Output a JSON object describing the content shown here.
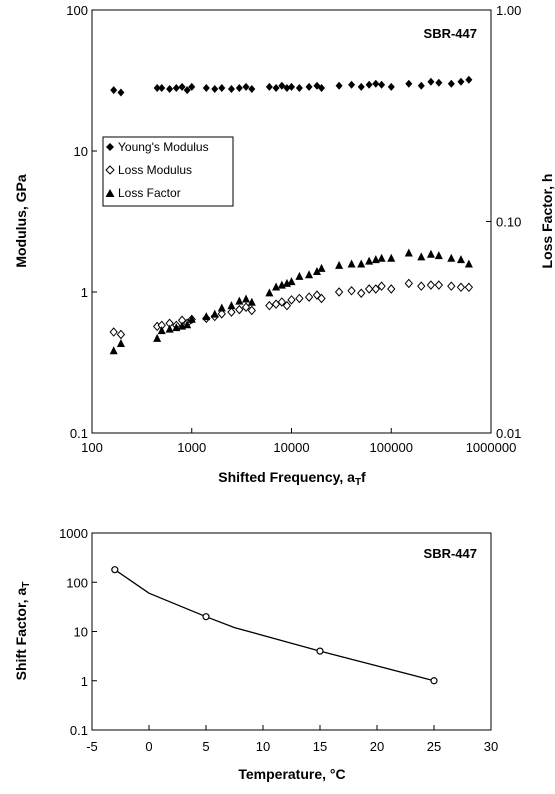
{
  "chart_data": [
    {
      "type": "scatter",
      "annotation": "SBR-447",
      "xlabel": "Shifted Frequency, a",
      "xlabel_sub": "T",
      "xlabel_tail": "f",
      "ylabel": "Modulus, GPa",
      "y2label": "Loss Factor, h",
      "x_scale": "log",
      "y_scale": "log",
      "y2_scale": "log",
      "xlim": [
        100,
        1000000
      ],
      "ylim": [
        0.1,
        100
      ],
      "y2lim": [
        0.01,
        1.0
      ],
      "x_ticks": [
        "100",
        "1000",
        "10000",
        "100000",
        "1000000"
      ],
      "y_ticks": [
        "0.1",
        "1",
        "10",
        "100"
      ],
      "y2_ticks": [
        "0.01",
        "0.10",
        "1.00"
      ],
      "grid": false,
      "legend_position": "upper-left",
      "series": [
        {
          "name": "Young's Modulus",
          "axis": "left",
          "marker": "filled-diamond",
          "x": [
            165,
            195,
            450,
            500,
            600,
            700,
            800,
            900,
            1000,
            1400,
            1700,
            2000,
            2500,
            3000,
            3500,
            4000,
            6000,
            7000,
            8000,
            9000,
            10000,
            12000,
            15000,
            18000,
            20000,
            30000,
            40000,
            50000,
            60000,
            70000,
            80000,
            100000,
            150000,
            200000,
            250000,
            300000,
            400000,
            500000,
            600000
          ],
          "y": [
            27,
            26,
            28,
            28,
            27.5,
            28,
            28.5,
            27,
            28.5,
            28,
            27.5,
            28,
            27.5,
            28,
            28.5,
            27.5,
            28.5,
            28,
            29,
            28,
            28.5,
            28,
            28.5,
            29,
            28,
            29,
            29.5,
            28.5,
            29.5,
            30,
            29.5,
            28.5,
            30,
            29,
            31,
            30.5,
            30,
            31,
            32
          ]
        },
        {
          "name": "Loss Modulus",
          "axis": "left",
          "marker": "open-diamond",
          "x": [
            165,
            195,
            450,
            500,
            600,
            700,
            800,
            900,
            1000,
            1400,
            1700,
            2000,
            2500,
            3000,
            3500,
            4000,
            6000,
            7000,
            8000,
            9000,
            10000,
            12000,
            15000,
            18000,
            20000,
            30000,
            40000,
            50000,
            60000,
            70000,
            80000,
            100000,
            150000,
            200000,
            250000,
            300000,
            400000,
            500000,
            600000
          ],
          "y": [
            0.52,
            0.5,
            0.57,
            0.58,
            0.6,
            0.58,
            0.63,
            0.6,
            0.64,
            0.65,
            0.67,
            0.7,
            0.72,
            0.75,
            0.78,
            0.74,
            0.8,
            0.82,
            0.85,
            0.8,
            0.88,
            0.9,
            0.92,
            0.95,
            0.9,
            1.0,
            1.02,
            0.98,
            1.05,
            1.05,
            1.1,
            1.05,
            1.15,
            1.1,
            1.12,
            1.12,
            1.1,
            1.08,
            1.08
          ]
        },
        {
          "name": "Loss Factor",
          "axis": "right",
          "marker": "filled-triangle",
          "x": [
            165,
            195,
            450,
            500,
            600,
            700,
            800,
            900,
            1000,
            1400,
            1700,
            2000,
            2500,
            3000,
            3500,
            4000,
            6000,
            7000,
            8000,
            9000,
            10000,
            12000,
            15000,
            18000,
            20000,
            30000,
            40000,
            50000,
            60000,
            70000,
            80000,
            100000,
            150000,
            200000,
            250000,
            300000,
            400000,
            500000,
            600000
          ],
          "y": [
            0.0245,
            0.0265,
            0.028,
            0.0305,
            0.031,
            0.0315,
            0.032,
            0.0325,
            0.0345,
            0.0355,
            0.0365,
            0.039,
            0.04,
            0.042,
            0.043,
            0.0415,
            0.046,
            0.049,
            0.05,
            0.051,
            0.052,
            0.055,
            0.056,
            0.058,
            0.06,
            0.062,
            0.063,
            0.063,
            0.065,
            0.066,
            0.067,
            0.067,
            0.071,
            0.068,
            0.07,
            0.069,
            0.067,
            0.066,
            0.063
          ]
        }
      ]
    },
    {
      "type": "line",
      "annotation": "SBR-447",
      "xlabel": "Temperature, °C",
      "ylabel": "Shift Factor, a",
      "ylabel_sub": "T",
      "x_scale": "linear",
      "y_scale": "log",
      "xlim": [
        -5,
        30
      ],
      "ylim": [
        0.1,
        1000
      ],
      "x_ticks": [
        "-5",
        "0",
        "5",
        "10",
        "15",
        "20",
        "25",
        "30"
      ],
      "y_ticks": [
        "0.1",
        "1",
        "10",
        "100",
        "1000"
      ],
      "grid": false,
      "series": [
        {
          "marker": "open-circle",
          "points_x": [
            -3,
            5,
            15,
            25
          ],
          "points_y": [
            180,
            20,
            4,
            1
          ],
          "line_x": [
            -3,
            0,
            5,
            7.5,
            15,
            20,
            25
          ],
          "line_y": [
            180,
            60,
            20,
            12,
            4,
            2,
            1
          ]
        }
      ]
    }
  ]
}
